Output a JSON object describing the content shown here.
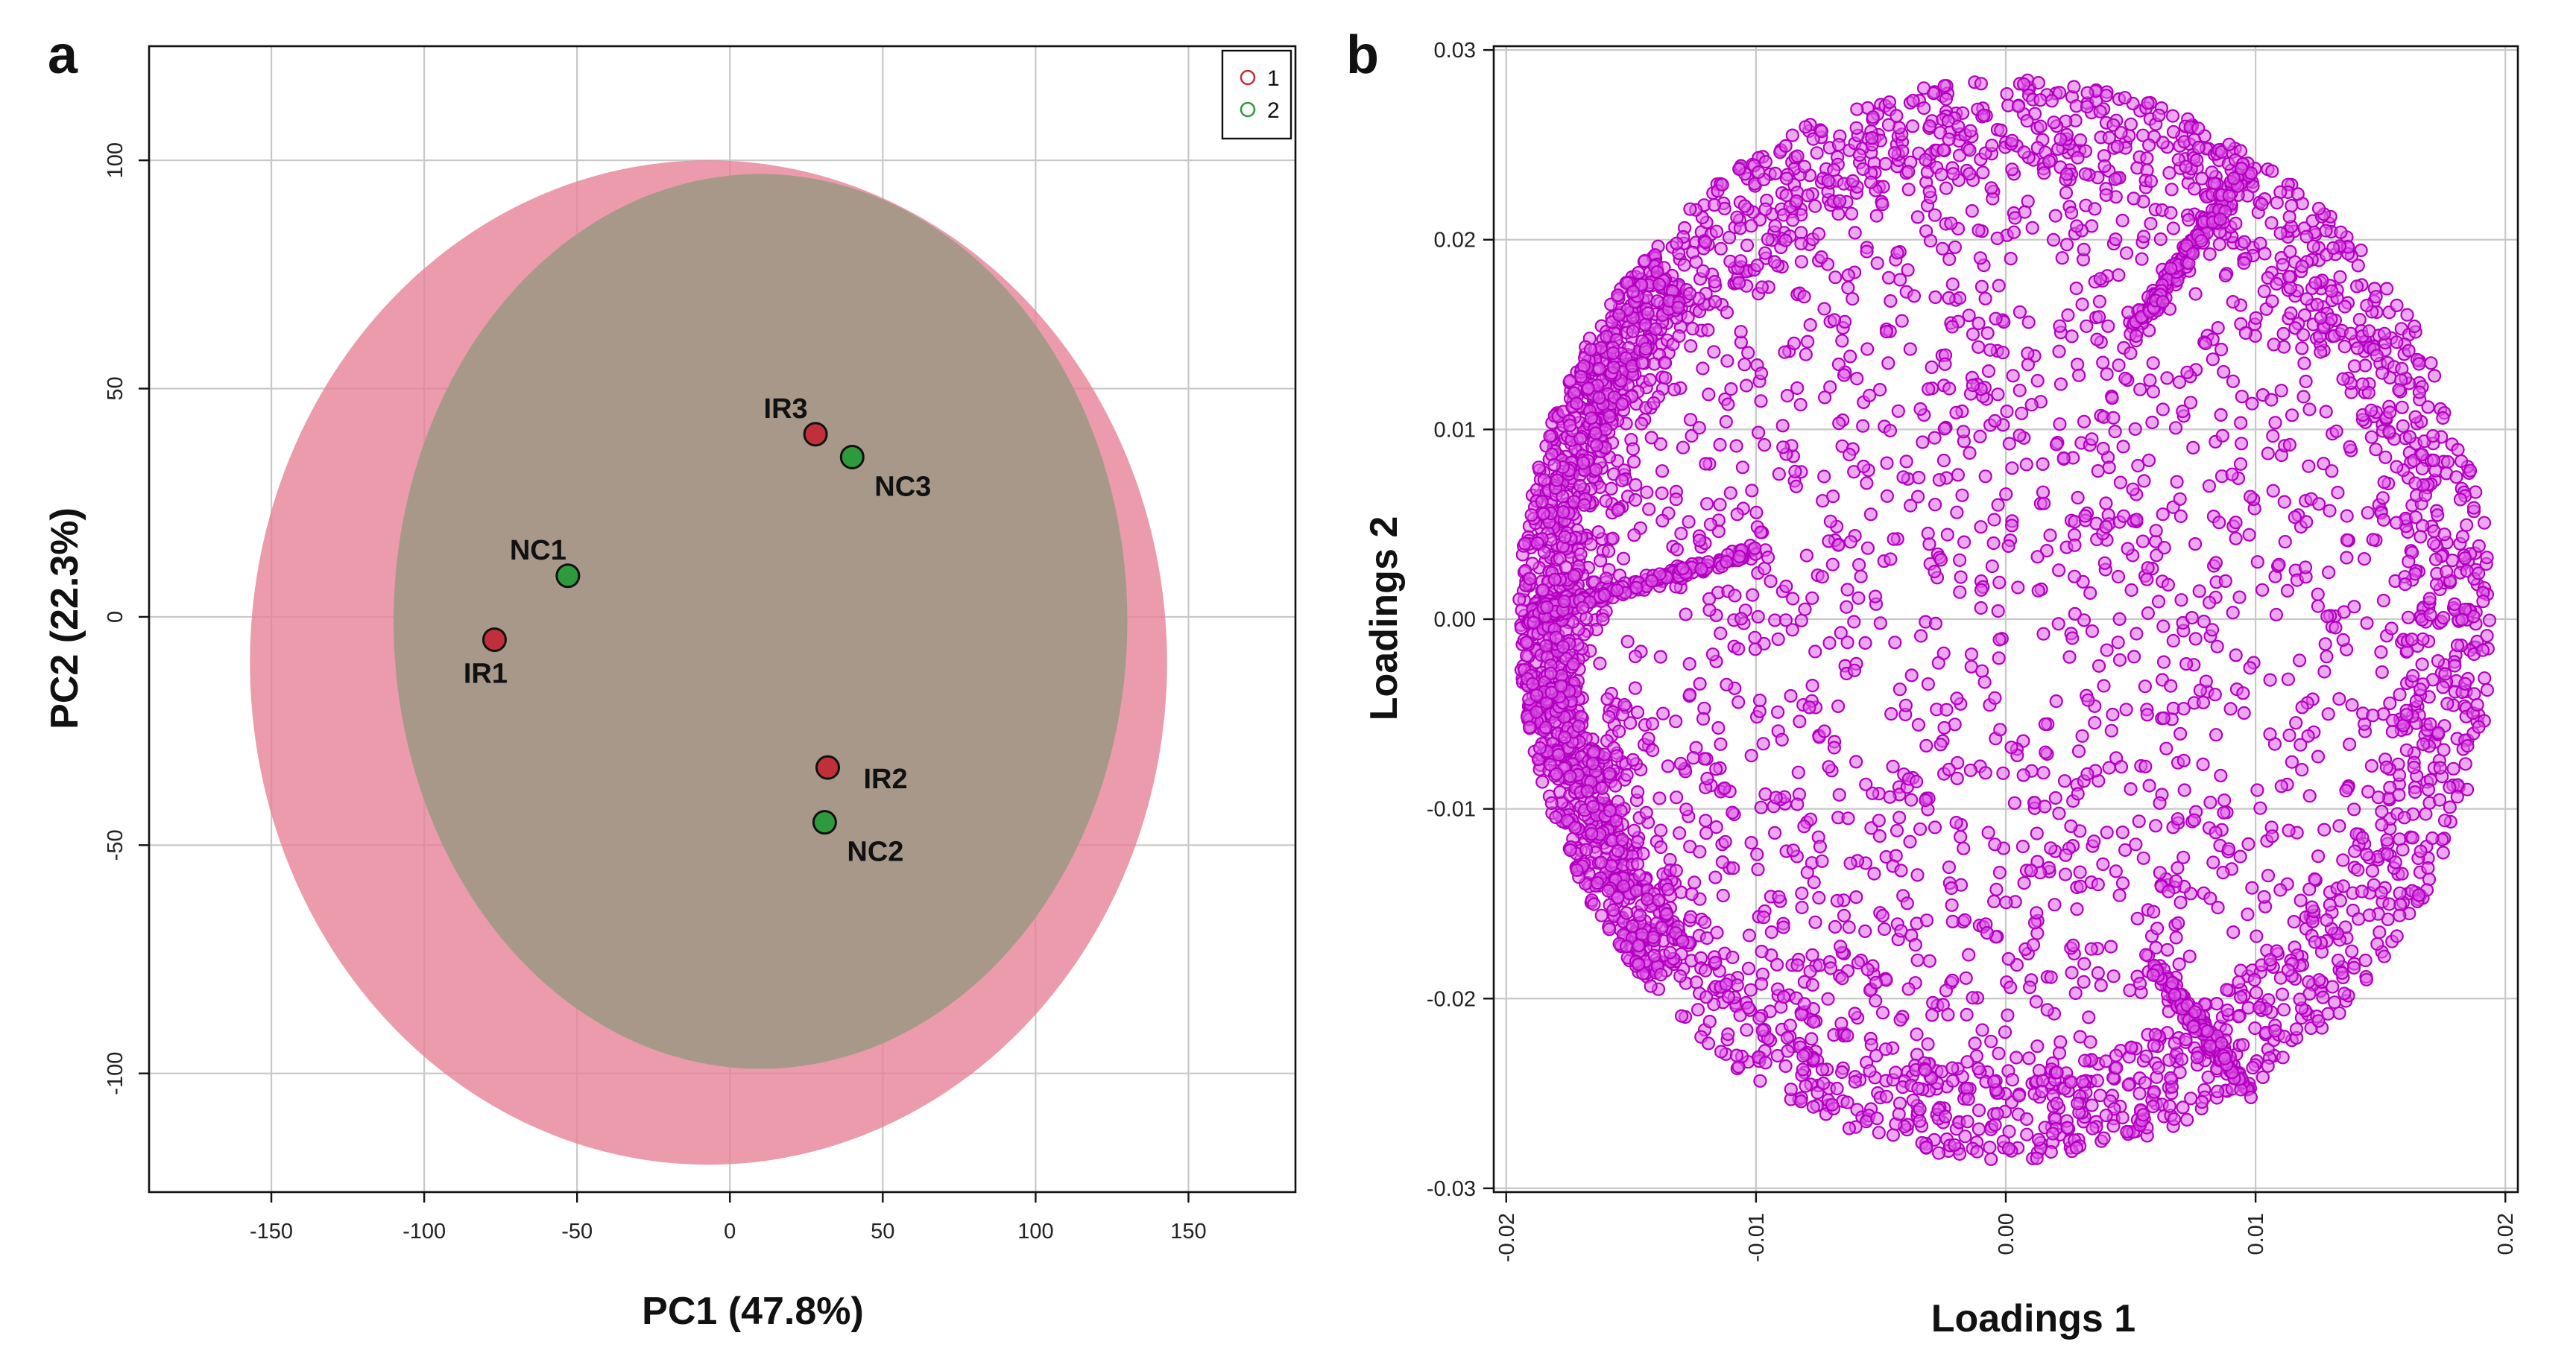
{
  "chart_data": [
    {
      "panel": "a",
      "type": "scatter",
      "title": "",
      "xlabel": "PC1 (47.8%)",
      "ylabel": "PC2 (22.3%)",
      "xlim": [
        -190,
        185
      ],
      "ylim": [
        -126,
        125
      ],
      "xticks": [
        -150,
        -100,
        -50,
        0,
        50,
        100,
        150
      ],
      "yticks": [
        -100,
        -50,
        0,
        50,
        100
      ],
      "xtick_labels": [
        "-150",
        "-100",
        "-50",
        "0",
        "50",
        "100",
        "150"
      ],
      "ytick_labels": [
        "-100",
        "-50",
        "0",
        "50",
        "100"
      ],
      "grid": true,
      "legend": {
        "placement": "top-right",
        "entries": [
          {
            "label": "1",
            "color": "#c0303a"
          },
          {
            "label": "2",
            "color": "#2e9a3e"
          }
        ]
      },
      "ellipses": [
        {
          "group": "1",
          "color": "#e57f94",
          "opacity": 0.78,
          "cx": -7,
          "cy": -10,
          "rx": 150,
          "ry": 110
        },
        {
          "group": "2",
          "color": "#8ecf94",
          "opacity": 0.72,
          "cx": 10,
          "cy": -1,
          "rx": 120,
          "ry": 98
        }
      ],
      "overlap_color": "#a8988a",
      "series": [
        {
          "name": "1",
          "color": "#c0303a",
          "points": [
            {
              "label": "IR1",
              "x": -77,
              "y": -5,
              "label_pos": "below-left"
            },
            {
              "label": "IR3",
              "x": 28,
              "y": 40,
              "label_pos": "above-left"
            },
            {
              "label": "IR2",
              "x": 32,
              "y": -33,
              "label_pos": "right"
            }
          ]
        },
        {
          "name": "2",
          "color": "#2e9a3e",
          "points": [
            {
              "label": "NC1",
              "x": -53,
              "y": 9,
              "label_pos": "above-left"
            },
            {
              "label": "NC3",
              "x": 40,
              "y": 35,
              "label_pos": "below-right"
            },
            {
              "label": "NC2",
              "x": 31,
              "y": -45,
              "label_pos": "below-right"
            }
          ]
        }
      ]
    },
    {
      "panel": "b",
      "type": "scatter",
      "title": "",
      "xlabel": "Loadings 1",
      "ylabel": "Loadings 2",
      "xlim": [
        -0.0205,
        0.0205
      ],
      "ylim": [
        -0.0302,
        0.0302
      ],
      "xticks": [
        -0.02,
        -0.01,
        0,
        0.01,
        0.02
      ],
      "yticks": [
        -0.03,
        -0.02,
        -0.01,
        0,
        0.01,
        0.02,
        0.03
      ],
      "xtick_labels": [
        "-0.02",
        "-0.01",
        "0.00",
        "0.01",
        "0.02"
      ],
      "ytick_labels": [
        "-0.03",
        "-0.02",
        "-0.01",
        "0.00",
        "0.01",
        "0.02",
        "0.03"
      ],
      "grid": true,
      "point_color": "#e060ea",
      "point_edge_color": "#b300c0",
      "distribution": {
        "shape": "disc",
        "center_x": 0,
        "center_y": 0,
        "radius_x": 0.0195,
        "radius_y": 0.0285,
        "approx_point_count": 3500,
        "dense_edge": "left"
      },
      "dense_streaks": [
        {
          "from": [
            -0.0195,
            0.0
          ],
          "to": [
            -0.01,
            0.0036
          ]
        },
        {
          "from": [
            0.005,
            0.015
          ],
          "to": [
            0.0098,
            0.024
          ]
        },
        {
          "from": [
            0.0058,
            -0.018
          ],
          "to": [
            0.0098,
            -0.025
          ]
        }
      ]
    }
  ]
}
